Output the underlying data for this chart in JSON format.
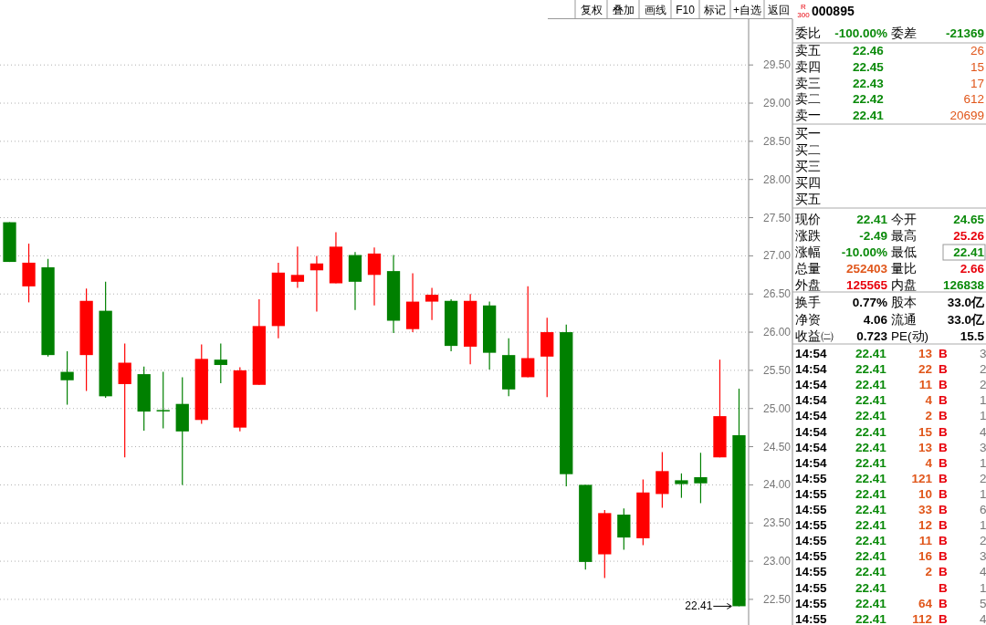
{
  "chart_data": [
    {
      "type": "candlestick",
      "categories": [
        null,
        null,
        null,
        null,
        null,
        null,
        null,
        null,
        null,
        null,
        null,
        null,
        null,
        null,
        null,
        null,
        null,
        null,
        null,
        null,
        null,
        null,
        null,
        null,
        null,
        null,
        null,
        null,
        null,
        null,
        null,
        null,
        null,
        null,
        null,
        null,
        null,
        null,
        null
      ],
      "ohlc": [
        [
          27.44,
          27.44,
          26.92,
          26.92
        ],
        [
          26.6,
          27.16,
          26.39,
          26.91
        ],
        [
          26.85,
          26.96,
          25.68,
          25.7
        ],
        [
          25.48,
          25.75,
          25.05,
          25.37
        ],
        [
          25.7,
          26.57,
          25.23,
          26.41
        ],
        [
          26.28,
          26.66,
          25.14,
          25.16
        ],
        [
          25.32,
          25.85,
          24.36,
          25.6
        ],
        [
          25.45,
          25.55,
          24.71,
          24.96
        ],
        [
          24.98,
          25.48,
          24.74,
          24.97
        ],
        [
          25.06,
          25.41,
          24.0,
          24.7
        ],
        [
          24.85,
          25.84,
          24.8,
          25.65
        ],
        [
          25.64,
          25.85,
          25.33,
          25.57
        ],
        [
          24.75,
          25.54,
          24.7,
          25.5
        ],
        [
          25.31,
          26.43,
          25.31,
          26.08
        ],
        [
          26.08,
          26.91,
          25.92,
          26.78
        ],
        [
          26.66,
          27.12,
          26.58,
          26.75
        ],
        [
          26.81,
          27.0,
          26.27,
          26.9
        ],
        [
          26.64,
          27.31,
          26.64,
          27.12
        ],
        [
          27.01,
          27.05,
          26.29,
          26.66
        ],
        [
          26.75,
          27.11,
          26.35,
          27.03
        ],
        [
          26.8,
          27.01,
          25.99,
          26.15
        ],
        [
          26.04,
          26.77,
          26.0,
          26.4
        ],
        [
          26.4,
          26.58,
          26.16,
          26.49
        ],
        [
          26.41,
          26.43,
          25.75,
          25.82
        ],
        [
          25.81,
          26.5,
          25.58,
          26.41
        ],
        [
          26.35,
          26.4,
          25.51,
          25.73
        ],
        [
          25.7,
          25.92,
          25.16,
          25.25
        ],
        [
          25.41,
          26.6,
          25.41,
          25.66
        ],
        [
          25.68,
          26.19,
          25.15,
          26.0
        ],
        [
          26.0,
          26.1,
          23.98,
          24.14
        ],
        [
          24.0,
          24.0,
          22.89,
          22.99
        ],
        [
          23.09,
          23.67,
          22.78,
          23.63
        ],
        [
          23.61,
          23.69,
          23.15,
          23.31
        ],
        [
          23.3,
          24.07,
          23.21,
          23.9
        ],
        [
          23.88,
          24.43,
          23.7,
          24.18
        ],
        [
          24.06,
          24.15,
          23.83,
          24.01
        ],
        [
          24.1,
          24.42,
          23.76,
          24.02
        ],
        [
          24.36,
          25.64,
          24.36,
          24.9
        ],
        [
          24.65,
          25.26,
          22.41,
          22.41
        ]
      ],
      "colors": [
        "#008000",
        "#ff0000",
        "#008000",
        "#008000",
        "#ff0000",
        "#008000",
        "#ff0000",
        "#008000",
        "#008000",
        "#008000",
        "#ff0000",
        "#008000",
        "#ff0000",
        "#ff0000",
        "#ff0000",
        "#ff0000",
        "#ff0000",
        "#ff0000",
        "#008000",
        "#ff0000",
        "#008000",
        "#ff0000",
        "#ff0000",
        "#008000",
        "#ff0000",
        "#008000",
        "#008000",
        "#ff0000",
        "#ff0000",
        "#008000",
        "#008000",
        "#ff0000",
        "#008000",
        "#ff0000",
        "#ff0000",
        "#008000",
        "#008000",
        "#ff0000",
        "#008000"
      ],
      "ylim": [
        22.2,
        30.1
      ],
      "yticks": [
        {
          "value": 22.5,
          "label": "22.50"
        },
        {
          "value": 23,
          "label": "23.00"
        },
        {
          "value": 23.5,
          "label": "23.50"
        },
        {
          "value": 24,
          "label": "24.00"
        },
        {
          "value": 24.5,
          "label": "24.50"
        },
        {
          "value": 25,
          "label": "25.00"
        },
        {
          "value": 25.5,
          "label": "25.50"
        },
        {
          "value": 26,
          "label": "26.00"
        },
        {
          "value": 26.5,
          "label": "26.50"
        },
        {
          "value": 27,
          "label": "27.00"
        },
        {
          "value": 27.5,
          "label": "27.50"
        },
        {
          "value": 28,
          "label": "28.00"
        },
        {
          "value": 28.5,
          "label": "28.50"
        },
        {
          "value": 29,
          "label": "29.00"
        },
        {
          "value": 29.5,
          "label": "29.50"
        }
      ],
      "grid": "y",
      "annotations": [
        "22.41"
      ]
    },
    {
      "type": "other",
      "annotations": [
        "复权",
        "叠加",
        "画线",
        "F10",
        "标记",
        "+自选",
        "返回"
      ]
    },
    {
      "type": "other",
      "title": "000895",
      "subtitle": "R 300",
      "annotations": [
        "委比",
        "-100.00%",
        "委差",
        "-21369",
        "卖五",
        "22.46",
        "26",
        "卖四",
        "22.45",
        "15",
        "卖三",
        "22.43",
        "17",
        "卖二",
        "22.42",
        "612",
        "卖一",
        "22.41",
        "20699",
        "买一",
        "买二",
        "买三",
        "买四",
        "买五",
        "现价",
        "22.41",
        "今开",
        "24.65",
        "涨跌",
        "-2.49",
        "最高",
        "25.26",
        "涨幅",
        "-10.00%",
        "最低",
        "22.41",
        "总量",
        "252403",
        "量比",
        "2.66",
        "外盘",
        "125565",
        "内盘",
        "126838",
        "换手",
        "0.77%",
        "股本",
        "33.0亿",
        "净资",
        "4.06",
        "流通",
        "33.0亿",
        "收益㈡",
        "0.723",
        "PE(动)",
        "15.5",
        "14:54",
        "22.41",
        "13",
        "B",
        "3",
        "14:54",
        "22.41",
        "22",
        "B",
        "2",
        "14:54",
        "22.41",
        "11",
        "B",
        "2",
        "14:54",
        "22.41",
        "4",
        "B",
        "1",
        "14:54",
        "22.41",
        "2",
        "B",
        "1",
        "14:54",
        "22.41",
        "15",
        "B",
        "4",
        "14:54",
        "22.41",
        "13",
        "B",
        "3",
        "14:54",
        "22.41",
        "4",
        "B",
        "1",
        "14:55",
        "22.41",
        "121",
        "B",
        "2",
        "14:55",
        "22.41",
        "10",
        "B",
        "1",
        "14:55",
        "22.41",
        "33",
        "B",
        "6",
        "14:55",
        "22.41",
        "12",
        "B",
        "1",
        "14:55",
        "22.41",
        "11",
        "B",
        "2",
        "14:55",
        "22.41",
        "16",
        "B",
        "3",
        "14:55",
        "22.41",
        "2",
        "B",
        "4",
        "14:55",
        "22.41",
        "B",
        "1",
        "14:55",
        "22.41",
        "64",
        "B",
        "5",
        "14:55",
        "22.41",
        "112",
        "B",
        "4"
      ]
    }
  ]
}
